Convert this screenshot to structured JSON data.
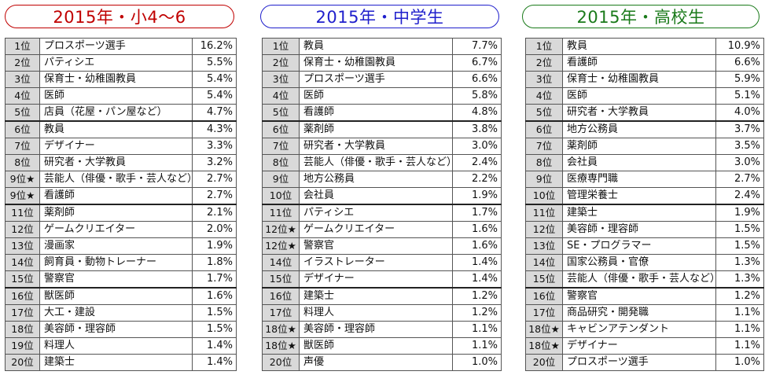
{
  "panels": [
    {
      "title": "2015年・小4〜6",
      "color": "#c00000",
      "rows": [
        {
          "rank": "1位",
          "job": "プロスポーツ選手",
          "pct": "16.2%"
        },
        {
          "rank": "2位",
          "job": "パティシエ",
          "pct": "5.5%"
        },
        {
          "rank": "3位",
          "job": "保育士・幼稚園教員",
          "pct": "5.4%"
        },
        {
          "rank": "4位",
          "job": "医師",
          "pct": "5.4%"
        },
        {
          "rank": "5位",
          "job": "店員（花屋・パン屋など）",
          "pct": "4.7%"
        },
        {
          "rank": "6位",
          "job": "教員",
          "pct": "4.3%"
        },
        {
          "rank": "7位",
          "job": "デザイナー",
          "pct": "3.3%"
        },
        {
          "rank": "8位",
          "job": "研究者・大学教員",
          "pct": "3.2%"
        },
        {
          "rank": "9位★",
          "job": "芸能人（俳優・歌手・芸人など）",
          "pct": "2.7%"
        },
        {
          "rank": "9位★",
          "job": "看護師",
          "pct": "2.7%"
        },
        {
          "rank": "11位",
          "job": "薬剤師",
          "pct": "2.1%"
        },
        {
          "rank": "12位",
          "job": "ゲームクリエイター",
          "pct": "2.0%"
        },
        {
          "rank": "13位",
          "job": "漫画家",
          "pct": "1.9%"
        },
        {
          "rank": "14位",
          "job": "飼育員・動物トレーナー",
          "pct": "1.8%"
        },
        {
          "rank": "15位",
          "job": "警察官",
          "pct": "1.7%"
        },
        {
          "rank": "16位",
          "job": "獣医師",
          "pct": "1.6%"
        },
        {
          "rank": "17位",
          "job": "大工・建設",
          "pct": "1.5%"
        },
        {
          "rank": "18位",
          "job": "美容師・理容師",
          "pct": "1.5%"
        },
        {
          "rank": "19位",
          "job": "料理人",
          "pct": "1.4%"
        },
        {
          "rank": "20位",
          "job": "建築士",
          "pct": "1.4%"
        }
      ]
    },
    {
      "title": "2015年・中学生",
      "color": "#1f1fcc",
      "rows": [
        {
          "rank": "1位",
          "job": "教員",
          "pct": "7.7%"
        },
        {
          "rank": "2位",
          "job": "保育士・幼稚園教員",
          "pct": "6.7%"
        },
        {
          "rank": "3位",
          "job": "プロスポーツ選手",
          "pct": "6.6%"
        },
        {
          "rank": "4位",
          "job": "医師",
          "pct": "5.8%"
        },
        {
          "rank": "5位",
          "job": "看護師",
          "pct": "4.8%"
        },
        {
          "rank": "6位",
          "job": "薬剤師",
          "pct": "3.8%"
        },
        {
          "rank": "7位",
          "job": "研究者・大学教員",
          "pct": "3.0%"
        },
        {
          "rank": "8位",
          "job": "芸能人（俳優・歌手・芸人など）",
          "pct": "2.4%"
        },
        {
          "rank": "9位",
          "job": "地方公務員",
          "pct": "2.2%"
        },
        {
          "rank": "10位",
          "job": "会社員",
          "pct": "1.9%"
        },
        {
          "rank": "11位",
          "job": "パティシエ",
          "pct": "1.7%"
        },
        {
          "rank": "12位★",
          "job": "ゲームクリエイター",
          "pct": "1.6%"
        },
        {
          "rank": "12位★",
          "job": "警察官",
          "pct": "1.6%"
        },
        {
          "rank": "14位",
          "job": "イラストレーター",
          "pct": "1.4%"
        },
        {
          "rank": "15位",
          "job": "デザイナー",
          "pct": "1.4%"
        },
        {
          "rank": "16位",
          "job": "建築士",
          "pct": "1.2%"
        },
        {
          "rank": "17位",
          "job": "料理人",
          "pct": "1.2%"
        },
        {
          "rank": "18位★",
          "job": "美容師・理容師",
          "pct": "1.1%"
        },
        {
          "rank": "18位★",
          "job": "獣医師",
          "pct": "1.1%"
        },
        {
          "rank": "20位",
          "job": "声優",
          "pct": "1.0%"
        }
      ]
    },
    {
      "title": "2015年・高校生",
      "color": "#1a7a1a",
      "rows": [
        {
          "rank": "1位",
          "job": "教員",
          "pct": "10.9%"
        },
        {
          "rank": "2位",
          "job": "看護師",
          "pct": "6.6%"
        },
        {
          "rank": "3位",
          "job": "保育士・幼稚園教員",
          "pct": "5.9%"
        },
        {
          "rank": "4位",
          "job": "医師",
          "pct": "5.1%"
        },
        {
          "rank": "5位",
          "job": "研究者・大学教員",
          "pct": "4.0%"
        },
        {
          "rank": "6位",
          "job": "地方公務員",
          "pct": "3.7%"
        },
        {
          "rank": "7位",
          "job": "薬剤師",
          "pct": "3.5%"
        },
        {
          "rank": "8位",
          "job": "会社員",
          "pct": "3.0%"
        },
        {
          "rank": "9位",
          "job": "医療専門職",
          "pct": "2.7%"
        },
        {
          "rank": "10位",
          "job": "管理栄養士",
          "pct": "2.4%"
        },
        {
          "rank": "11位",
          "job": "建築士",
          "pct": "1.9%"
        },
        {
          "rank": "12位",
          "job": "美容師・理容師",
          "pct": "1.5%"
        },
        {
          "rank": "13位",
          "job": "SE・プログラマー",
          "pct": "1.5%"
        },
        {
          "rank": "14位",
          "job": "国家公務員・官僚",
          "pct": "1.3%"
        },
        {
          "rank": "15位",
          "job": "芸能人（俳優・歌手・芸人など）",
          "pct": "1.3%"
        },
        {
          "rank": "16位",
          "job": "警察官",
          "pct": "1.2%"
        },
        {
          "rank": "17位",
          "job": "商品研究・開発職",
          "pct": "1.1%"
        },
        {
          "rank": "18位★",
          "job": "キャビンアテンダント",
          "pct": "1.1%"
        },
        {
          "rank": "18位★",
          "job": "デザイナー",
          "pct": "1.1%"
        },
        {
          "rank": "20位",
          "job": "プロスポーツ選手",
          "pct": "1.0%"
        }
      ]
    }
  ]
}
